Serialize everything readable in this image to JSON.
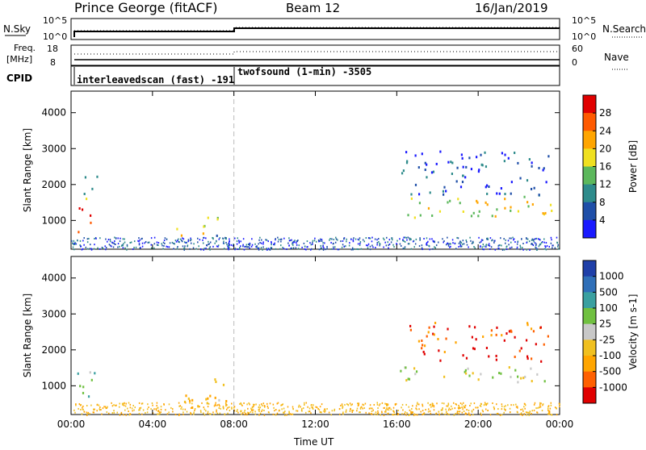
{
  "header": {
    "site": "Prince George (fitACF)",
    "beam": "Beam 12",
    "date": "16/Jan/2019"
  },
  "strips": {
    "nsky_label": "N.Sky",
    "nsearch_label": "N.Search",
    "nsky_ticks": [
      "10^5",
      "10^0"
    ],
    "nsearch_ticks": [
      "10^5",
      "10^0"
    ],
    "freq_label_1": "Freq.",
    "freq_label_2": "[MHz]",
    "freq_ticks": [
      "18",
      "8"
    ],
    "nave_label": "Nave",
    "nave_ticks": [
      "60",
      "0"
    ],
    "cpid_label": "CPID",
    "modes": [
      "interleavedscan (fast) -191",
      "twofsound (1-min) -3505"
    ]
  },
  "chart_data": [
    {
      "type": "heatmap",
      "name": "power",
      "ylabel": "Slant Range [km]",
      "xlabel": "",
      "x_ticks": [
        "00:00",
        "04:00",
        "08:00",
        "12:00",
        "16:00",
        "20:00",
        "00:00"
      ],
      "y_ticks": [
        1000,
        2000,
        3000,
        4000
      ],
      "ylim": [
        200,
        4600
      ],
      "xlim_hours": [
        0,
        24
      ],
      "colorbar_label": "Power [dB]",
      "colorbar_ticks": [
        4,
        8,
        12,
        16,
        20,
        24,
        28
      ],
      "colorbar_colors": [
        "#1a1aff",
        "#1f4fa8",
        "#2e8b8b",
        "#5cb85c",
        "#f0e020",
        "#ffa500",
        "#ff5a00",
        "#e00000"
      ],
      "regions": [
        {
          "t0": 0.3,
          "t1": 1.1,
          "r0": 700,
          "r1": 1500,
          "level": 7
        },
        {
          "t0": 0.5,
          "t1": 1.3,
          "r0": 1500,
          "r1": 2300,
          "level": 3
        },
        {
          "t0": 5.0,
          "t1": 6.6,
          "r0": 550,
          "r1": 900,
          "level": 4
        },
        {
          "t0": 6.2,
          "t1": 7.8,
          "r0": 1000,
          "r1": 1200,
          "level": 3
        },
        {
          "t0": 7.0,
          "t1": 8.0,
          "r0": 500,
          "r1": 700,
          "level": 2
        },
        {
          "t0": 16.5,
          "t1": 24.0,
          "r0": 1100,
          "r1": 1700,
          "level": 4
        },
        {
          "t0": 16.2,
          "t1": 23.5,
          "r0": 1700,
          "r1": 3000,
          "level": 1
        }
      ]
    },
    {
      "type": "heatmap",
      "name": "velocity",
      "ylabel": "Slant Range [km]",
      "xlabel": "Time UT",
      "x_ticks": [
        "00:00",
        "04:00",
        "08:00",
        "12:00",
        "16:00",
        "20:00",
        "00:00"
      ],
      "y_ticks": [
        1000,
        2000,
        3000,
        4000
      ],
      "ylim": [
        200,
        4600
      ],
      "xlim_hours": [
        0,
        24
      ],
      "colorbar_label": "Velocity [m s-1]",
      "colorbar_ticks": [
        1000,
        500,
        100,
        25,
        -25,
        -100,
        -500,
        -1000
      ],
      "colorbar_colors": [
        "#1f3fa8",
        "#2f6fb8",
        "#3aa0a0",
        "#70c040",
        "#c8c8c8",
        "#f0c020",
        "#ffa500",
        "#ff6000",
        "#e00000"
      ],
      "regions": [
        {
          "t0": 0.2,
          "t1": 1.2,
          "r0": 700,
          "r1": 1600,
          "level": 3
        },
        {
          "t0": 5.0,
          "t1": 8.0,
          "r0": 400,
          "r1": 900,
          "level": 5
        },
        {
          "t0": 6.2,
          "t1": 7.5,
          "r0": 1000,
          "r1": 1250,
          "level": 4
        },
        {
          "t0": 16.0,
          "t1": 24.0,
          "r0": 1100,
          "r1": 1600,
          "level": 4
        },
        {
          "t0": 16.5,
          "t1": 23.5,
          "r0": 1700,
          "r1": 2800,
          "level": 7
        }
      ]
    }
  ]
}
